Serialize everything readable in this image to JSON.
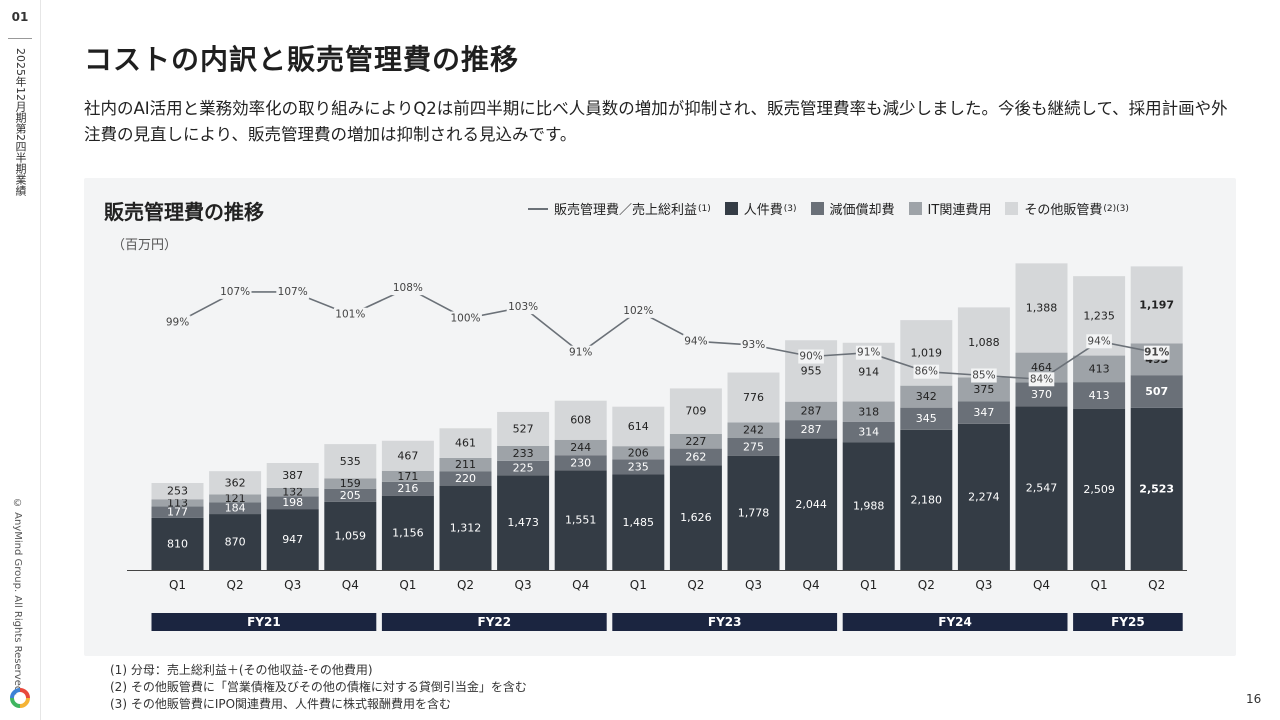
{
  "slide": {
    "page_label": "01",
    "report_label": "2025年12月期第2四半期業績",
    "copyright": "© AnyMind Group. All Rights Reserved.",
    "page_number": "16",
    "title": "コストの内訳と販売管理費の推移",
    "lead": "社内のAI活用と業務効率化の取り組みによりQ2は前四半期に比べ人員数の増加が抑制され、販売管理費率も減少しました。今後も継続して、採用計画や外注費の見直しにより、販売管理費の増加は抑制される見込みです。",
    "footnotes": [
      "(1) 分母：売上総利益＋(その他収益-その他費用)",
      "(2) その他販管費に「営業債権及びその他の債権に対する貸倒引当金」を含む",
      "(3) その他販管費にIPO関連費用、人件費に株式報酬費用を含む"
    ]
  },
  "legend": {
    "ratio": {
      "label": "販売管理費／売上総利益",
      "note": "(1)"
    },
    "personnel": {
      "label": "人件費",
      "note": "(3)"
    },
    "depreciation": {
      "label": "減価償却費",
      "note": ""
    },
    "it": {
      "label": "IT関連費用",
      "note": ""
    },
    "other": {
      "label": "その他販管費",
      "note": "(2)(3)"
    }
  },
  "colors": {
    "personnel": "#343c45",
    "depreciation": "#6a7078",
    "it": "#9ea3a8",
    "other": "#d5d7d9",
    "ratio_line": "#6b7178",
    "fy_band": "#1b2540"
  },
  "chart_data": {
    "type": "bar",
    "stacked": true,
    "title": "販売管理費の推移",
    "unit": "（百万円）",
    "categories": [
      "Q1",
      "Q2",
      "Q3",
      "Q4",
      "Q1",
      "Q2",
      "Q3",
      "Q4",
      "Q1",
      "Q2",
      "Q3",
      "Q4",
      "Q1",
      "Q2",
      "Q3",
      "Q4",
      "Q1",
      "Q2"
    ],
    "fiscal_years": [
      {
        "label": "FY21",
        "start": 0,
        "end": 3
      },
      {
        "label": "FY22",
        "start": 4,
        "end": 7
      },
      {
        "label": "FY23",
        "start": 8,
        "end": 11
      },
      {
        "label": "FY24",
        "start": 12,
        "end": 15
      },
      {
        "label": "FY25",
        "start": 16,
        "end": 17
      }
    ],
    "series": [
      {
        "name": "人件費",
        "key": "personnel",
        "values": [
          810,
          870,
          947,
          1059,
          1156,
          1312,
          1473,
          1551,
          1485,
          1626,
          1778,
          2044,
          1988,
          2180,
          2274,
          2547,
          2509,
          2523
        ]
      },
      {
        "name": "減価償却費",
        "key": "depreciation",
        "values": [
          177,
          184,
          198,
          205,
          216,
          220,
          225,
          230,
          235,
          262,
          275,
          287,
          314,
          345,
          347,
          370,
          413,
          507
        ]
      },
      {
        "name": "IT関連費用",
        "key": "it",
        "values": [
          113,
          121,
          132,
          159,
          171,
          211,
          233,
          244,
          206,
          227,
          242,
          287,
          318,
          342,
          375,
          464,
          413,
          495
        ]
      },
      {
        "name": "その他販管費",
        "key": "other",
        "values": [
          253,
          362,
          387,
          535,
          467,
          461,
          527,
          608,
          614,
          709,
          776,
          955,
          914,
          1019,
          1088,
          1388,
          1235,
          1197
        ]
      }
    ],
    "ratio": {
      "name": "販売管理費／売上総利益",
      "values": [
        "99%",
        "107%",
        "107%",
        "101%",
        "108%",
        "100%",
        "103%",
        "91%",
        "102%",
        "94%",
        "93%",
        "90%",
        "91%",
        "86%",
        "85%",
        "84%",
        "94%",
        "91%"
      ]
    }
  }
}
